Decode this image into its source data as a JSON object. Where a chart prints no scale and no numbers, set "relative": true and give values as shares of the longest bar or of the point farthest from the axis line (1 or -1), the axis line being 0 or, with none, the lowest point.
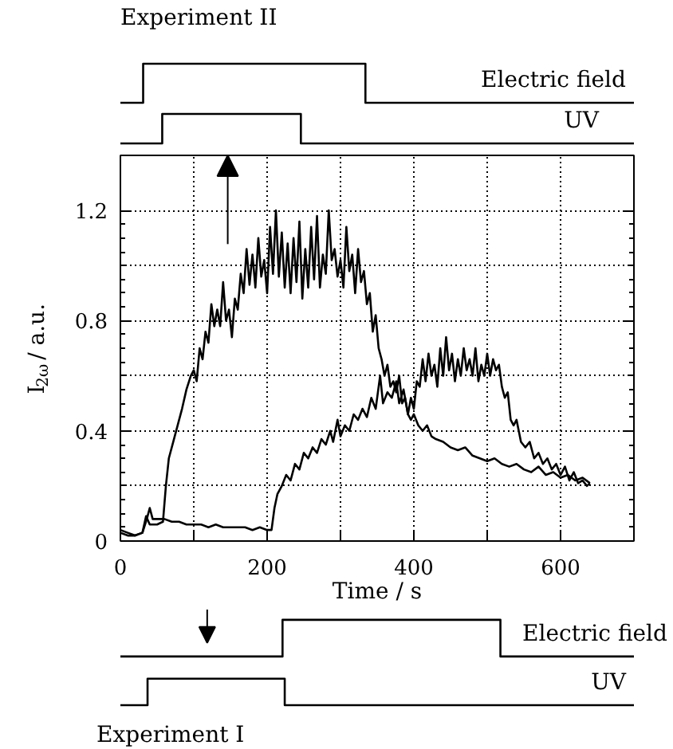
{
  "chart_data": [
    {
      "type": "step",
      "title": "Experiment II",
      "relative": true,
      "xlim": [
        0,
        700
      ],
      "tick_labels": false,
      "series": [
        {
          "name": "Electric field",
          "color": "#000000",
          "x": [
            0,
            31,
            334,
            700
          ],
          "values": [
            0.51,
            1,
            0.51,
            0.51
          ]
        },
        {
          "name": "UV",
          "color": "#000000",
          "x": [
            0,
            57,
            246,
            700
          ],
          "values": [
            0,
            0.37,
            0,
            0
          ]
        }
      ]
    },
    {
      "type": "line",
      "xlabel": "Time / s",
      "ylabel": "I$_{2ω}$ / a.u.",
      "xlim": [
        0,
        700
      ],
      "ylim": [
        0,
        1.4
      ],
      "xticks": [
        0,
        {
          "value": 100,
          "label": null
        },
        200,
        {
          "value": 300,
          "label": null
        },
        400,
        {
          "value": 500,
          "label": null
        },
        600
      ],
      "yticks": [
        0,
        {
          "value": 0.2,
          "label": null
        },
        0.4,
        {
          "value": 0.6,
          "label": null
        },
        0.8,
        {
          "value": 1.0,
          "label": null
        },
        1.2
      ],
      "grid": true,
      "series": [
        {
          "color": "#000000",
          "x": [
            0,
            10,
            20,
            30,
            35,
            40,
            50,
            58,
            62,
            66,
            72,
            78,
            84,
            90,
            96,
            100,
            104,
            108,
            112,
            116,
            120,
            124,
            128,
            132,
            136,
            140,
            144,
            148,
            152,
            156,
            160,
            164,
            168,
            172,
            176,
            180,
            184,
            188,
            192,
            196,
            200,
            204,
            208,
            212,
            216,
            220,
            224,
            228,
            232,
            236,
            240,
            244,
            248,
            252,
            256,
            260,
            264,
            268,
            272,
            276,
            280,
            284,
            288,
            292,
            296,
            300,
            304,
            308,
            312,
            316,
            320,
            324,
            328,
            332,
            336,
            340,
            344,
            348,
            352,
            356,
            360,
            364,
            368,
            372,
            376,
            380,
            384,
            388,
            392,
            396,
            400,
            406,
            412,
            418,
            424,
            430,
            440,
            450,
            460,
            470,
            480,
            490,
            500,
            510,
            520,
            530,
            540,
            550,
            560,
            570,
            580,
            590,
            600,
            610,
            620,
            630,
            640
          ],
          "values": [
            0.04,
            0.03,
            0.02,
            0.03,
            0.09,
            0.06,
            0.06,
            0.07,
            0.2,
            0.3,
            0.36,
            0.42,
            0.48,
            0.55,
            0.6,
            0.62,
            0.58,
            0.7,
            0.66,
            0.76,
            0.72,
            0.86,
            0.78,
            0.84,
            0.78,
            0.94,
            0.8,
            0.84,
            0.74,
            0.88,
            0.84,
            0.97,
            0.9,
            1.06,
            0.93,
            1.04,
            0.92,
            1.1,
            0.96,
            1.02,
            0.9,
            1.14,
            0.97,
            1.2,
            0.96,
            1.12,
            0.92,
            1.08,
            0.9,
            1.1,
            0.94,
            1.16,
            0.88,
            1.06,
            0.92,
            1.14,
            0.95,
            1.18,
            0.92,
            1.04,
            0.97,
            1.2,
            1.02,
            1.06,
            0.96,
            1.02,
            0.92,
            1.14,
            0.98,
            1.04,
            0.9,
            1.06,
            0.94,
            0.98,
            0.86,
            0.9,
            0.76,
            0.82,
            0.7,
            0.66,
            0.6,
            0.64,
            0.56,
            0.58,
            0.54,
            0.6,
            0.5,
            0.52,
            0.46,
            0.44,
            0.46,
            0.42,
            0.4,
            0.42,
            0.38,
            0.37,
            0.36,
            0.34,
            0.33,
            0.34,
            0.31,
            0.3,
            0.29,
            0.3,
            0.28,
            0.27,
            0.28,
            0.26,
            0.25,
            0.27,
            0.24,
            0.25,
            0.23,
            0.24,
            0.22,
            0.23,
            0.21
          ]
        },
        {
          "color": "#000000",
          "x": [
            0,
            10,
            20,
            30,
            36,
            40,
            44,
            50,
            60,
            70,
            80,
            90,
            100,
            110,
            120,
            130,
            140,
            150,
            160,
            170,
            180,
            190,
            200,
            206,
            210,
            214,
            220,
            226,
            232,
            238,
            244,
            250,
            256,
            262,
            268,
            274,
            280,
            286,
            290,
            296,
            300,
            306,
            312,
            318,
            324,
            330,
            336,
            342,
            348,
            354,
            358,
            364,
            370,
            376,
            380,
            386,
            392,
            396,
            400,
            404,
            408,
            412,
            416,
            420,
            424,
            428,
            432,
            436,
            440,
            444,
            448,
            452,
            456,
            460,
            464,
            468,
            472,
            476,
            480,
            484,
            488,
            492,
            496,
            500,
            504,
            508,
            512,
            516,
            520,
            524,
            528,
            532,
            536,
            540,
            546,
            552,
            558,
            564,
            570,
            576,
            582,
            588,
            594,
            600,
            606,
            612,
            618,
            624,
            630,
            636,
            640
          ],
          "values": [
            0.03,
            0.02,
            0.02,
            0.03,
            0.08,
            0.12,
            0.08,
            0.08,
            0.08,
            0.07,
            0.07,
            0.06,
            0.06,
            0.06,
            0.05,
            0.06,
            0.05,
            0.05,
            0.05,
            0.05,
            0.04,
            0.05,
            0.04,
            0.04,
            0.12,
            0.17,
            0.2,
            0.24,
            0.22,
            0.28,
            0.26,
            0.32,
            0.3,
            0.34,
            0.32,
            0.37,
            0.35,
            0.4,
            0.36,
            0.44,
            0.38,
            0.42,
            0.4,
            0.46,
            0.44,
            0.48,
            0.45,
            0.52,
            0.48,
            0.6,
            0.5,
            0.54,
            0.52,
            0.58,
            0.5,
            0.55,
            0.46,
            0.52,
            0.48,
            0.58,
            0.56,
            0.66,
            0.58,
            0.68,
            0.6,
            0.64,
            0.56,
            0.7,
            0.6,
            0.74,
            0.62,
            0.68,
            0.58,
            0.66,
            0.6,
            0.7,
            0.62,
            0.66,
            0.6,
            0.7,
            0.58,
            0.64,
            0.6,
            0.68,
            0.6,
            0.66,
            0.62,
            0.64,
            0.56,
            0.52,
            0.54,
            0.44,
            0.42,
            0.44,
            0.36,
            0.34,
            0.36,
            0.3,
            0.32,
            0.28,
            0.3,
            0.26,
            0.28,
            0.24,
            0.27,
            0.22,
            0.25,
            0.21,
            0.22,
            0.2,
            0.21
          ]
        }
      ]
    },
    {
      "type": "step",
      "title": "Experiment I",
      "relative": true,
      "xlim": [
        0,
        700
      ],
      "tick_labels": false,
      "series": [
        {
          "name": "Electric field",
          "color": "#000000",
          "x": [
            0,
            221,
            518,
            700
          ],
          "values": [
            0.57,
            1,
            0.57,
            0.57
          ]
        },
        {
          "name": "UV",
          "color": "#000000",
          "x": [
            0,
            37,
            224,
            700
          ],
          "values": [
            0,
            0.31,
            0,
            0
          ]
        }
      ]
    }
  ]
}
